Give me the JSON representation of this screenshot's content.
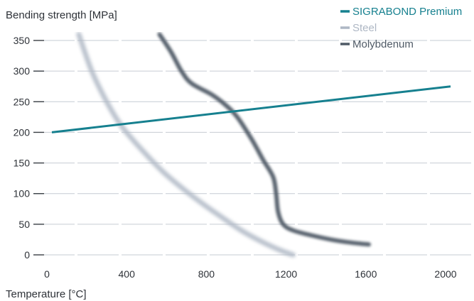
{
  "chart_data": {
    "type": "line",
    "ylabel": "Bending strength [MPa]",
    "xlabel": "Temperature [°C]",
    "xlim": [
      0,
      2000
    ],
    "ylim": [
      0,
      360
    ],
    "x_ticks": [
      0,
      400,
      800,
      1200,
      1600,
      2000
    ],
    "y_ticks": [
      0,
      50,
      100,
      150,
      200,
      250,
      300,
      350
    ],
    "x_tick_labels": [
      "0",
      "400",
      "800",
      "1200",
      "1600",
      "2000"
    ],
    "y_tick_labels": [
      "0",
      "50",
      "100",
      "150",
      "200",
      "250",
      "300",
      "350"
    ],
    "grid": "horizontal",
    "legend_position": "top-right",
    "series": [
      {
        "name": "SIGRABOND Premium",
        "color": "#16808f",
        "style": "solid",
        "points": [
          [
            0,
            200
          ],
          [
            2000,
            275
          ]
        ]
      },
      {
        "name": "Steel",
        "color": "#aeb7c4",
        "style": "blurred",
        "points": [
          [
            135,
            360
          ],
          [
            200,
            300
          ],
          [
            275,
            250
          ],
          [
            350,
            210
          ],
          [
            450,
            172
          ],
          [
            550,
            138
          ],
          [
            650,
            110
          ],
          [
            750,
            85
          ],
          [
            850,
            62
          ],
          [
            950,
            40
          ],
          [
            1050,
            22
          ],
          [
            1150,
            7
          ],
          [
            1210,
            0
          ]
        ]
      },
      {
        "name": "Molybdenum",
        "color": "#4f5a66",
        "style": "blurred",
        "points": [
          [
            540,
            360
          ],
          [
            600,
            330
          ],
          [
            650,
            300
          ],
          [
            700,
            280
          ],
          [
            800,
            262
          ],
          [
            870,
            245
          ],
          [
            930,
            225
          ],
          [
            1000,
            190
          ],
          [
            1060,
            155
          ],
          [
            1110,
            127
          ],
          [
            1125,
            100
          ],
          [
            1135,
            70
          ],
          [
            1160,
            50
          ],
          [
            1210,
            40
          ],
          [
            1300,
            32
          ],
          [
            1400,
            25
          ],
          [
            1500,
            20
          ],
          [
            1590,
            17
          ]
        ]
      }
    ]
  }
}
